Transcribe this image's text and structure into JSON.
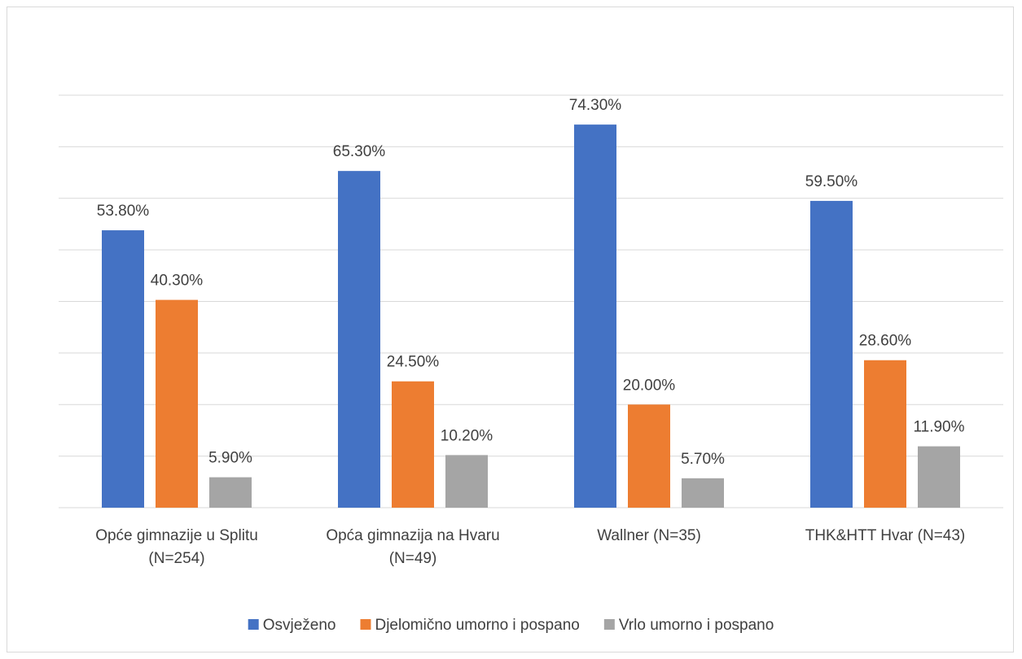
{
  "chart_data": {
    "type": "bar",
    "title": "",
    "xlabel": "",
    "ylabel": "",
    "ylim": [
      0,
      80
    ],
    "grid": true,
    "legend_position": "bottom",
    "categories": [
      [
        "Opće gimnazije u Splitu",
        "(N=254)"
      ],
      [
        "Opća gimnazija na Hvaru",
        "(N=49)"
      ],
      [
        "Wallner (N=35)"
      ],
      [
        "THK&HTT Hvar (N=43)"
      ]
    ],
    "series": [
      {
        "name": "Osvježeno",
        "color": "#4472C4",
        "values": [
          53.8,
          65.3,
          74.3,
          59.5
        ],
        "labels": [
          "53.80%",
          "65.30%",
          "74.30%",
          "59.50%"
        ]
      },
      {
        "name": "Djelomično umorno i pospano",
        "color": "#ED7D31",
        "values": [
          40.3,
          24.5,
          20.0,
          28.6
        ],
        "labels": [
          "40.30%",
          "24.50%",
          "20.00%",
          "28.60%"
        ]
      },
      {
        "name": "Vrlo umorno i pospano",
        "color": "#A5A5A5",
        "values": [
          5.9,
          10.2,
          5.7,
          11.9
        ],
        "labels": [
          "5.90%",
          "10.20%",
          "5.70%",
          "11.90%"
        ]
      }
    ]
  }
}
